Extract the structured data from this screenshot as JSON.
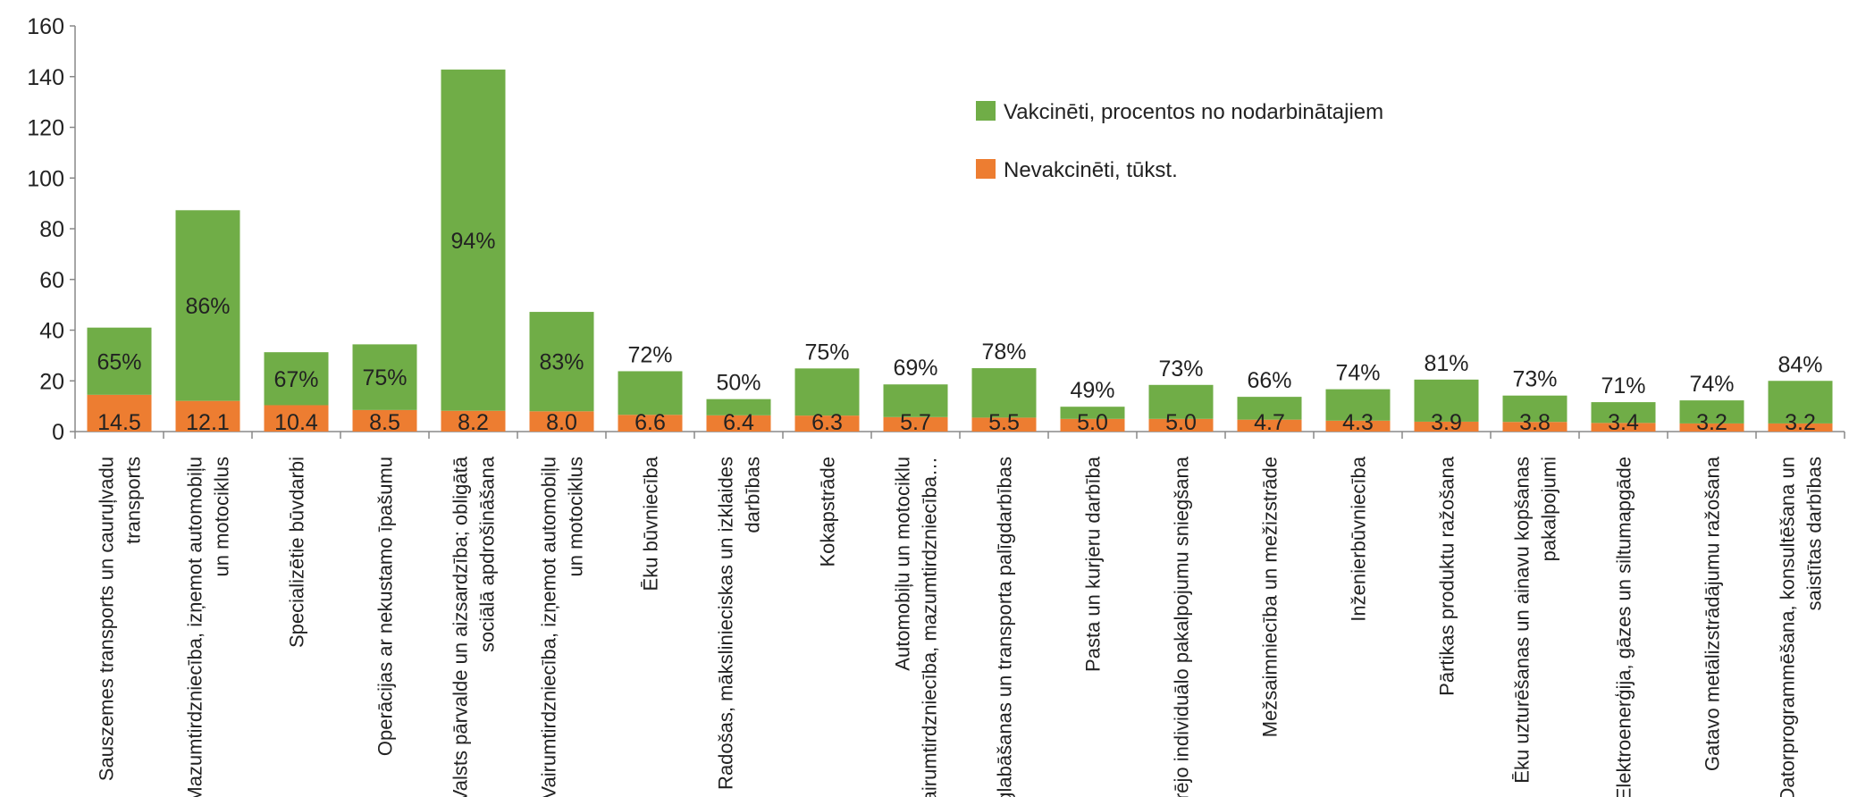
{
  "chart_data": {
    "type": "bar",
    "stacked": true,
    "ylim": [
      0,
      160
    ],
    "yticks": [
      0,
      20,
      40,
      60,
      80,
      100,
      120,
      140,
      160
    ],
    "grid": false,
    "legend_position": "top-right",
    "colors": {
      "vakcineti": "#70AD47",
      "nevakcineti": "#ED7D31"
    },
    "categories": [
      [
        "Sauszemes transports un cauruļvadu",
        "transports"
      ],
      [
        "Mazumtirdzniecība, izņemot automobiļu",
        "un motociklus"
      ],
      [
        "Specializētie būvdarbi"
      ],
      [
        "Operācijas ar nekustamo īpašumu"
      ],
      [
        "Valsts pārvalde un aizsardzība; obligātā",
        "sociālā apdrošināšana"
      ],
      [
        "Vairumtirdzniecība, izņemot automobiļu",
        "un motociklus"
      ],
      [
        "Ēku būvniecība"
      ],
      [
        "Radošas, mākslinieciskas un izklaides",
        "darbības"
      ],
      [
        "Kokapstrāde"
      ],
      [
        "Automobiļu un motociklu",
        "vairumtirdzniecība, mazumtirdzniecība…"
      ],
      [
        "Uzglabāšanas un transporta palīgdarbības"
      ],
      [
        "Pasta un kurjeru darbība"
      ],
      [
        "Pārējo individuālo pakalpojumu sniegšana"
      ],
      [
        "Mežsaimniecība un mežizstrāde"
      ],
      [
        "Inženierbūvniecība"
      ],
      [
        "Pārtikas produktu ražošana"
      ],
      [
        "Ēku uzturēšanas un ainavu kopšanas",
        "pakalpojumi"
      ],
      [
        "Elektroenerģija, gāzes un siltumapgāde"
      ],
      [
        "Gatavo metālizstrādājumu ražošana"
      ],
      [
        "Datorprogrammēšana, konsultēšana un",
        "saistītas darbības"
      ]
    ],
    "series": [
      {
        "name": "Nevakcinēti, tūkst.",
        "values": [
          14.5,
          12.1,
          10.4,
          8.5,
          8.2,
          8.0,
          6.6,
          6.4,
          6.3,
          5.7,
          5.5,
          5.0,
          5.0,
          4.7,
          4.3,
          3.9,
          3.8,
          3.4,
          3.2,
          3.2
        ],
        "labels": [
          "14.5",
          "12.1",
          "10.4",
          "8.5",
          "8.2",
          "8.0",
          "6.6",
          "6.4",
          "6.3",
          "5.7",
          "5.5",
          "5.0",
          "5.0",
          "4.7",
          "4.3",
          "3.9",
          "3.8",
          "3.4",
          "3.2",
          "3.2"
        ]
      },
      {
        "name": "Vakcinēti, procentos no nodarbinātajiem",
        "values": [
          26.5,
          75.2,
          20.9,
          25.9,
          134.6,
          39.2,
          17.2,
          6.4,
          18.6,
          12.9,
          19.5,
          4.8,
          13.4,
          9.0,
          12.4,
          16.6,
          10.4,
          8.2,
          9.1,
          16.8
        ],
        "labels": [
          "65%",
          "86%",
          "67%",
          "75%",
          "94%",
          "83%",
          "72%",
          "50%",
          "75%",
          "69%",
          "78%",
          "49%",
          "73%",
          "66%",
          "74%",
          "81%",
          "73%",
          "71%",
          "74%",
          "84%"
        ],
        "label_inside": [
          true,
          true,
          true,
          true,
          true,
          true,
          false,
          false,
          false,
          false,
          false,
          false,
          false,
          false,
          false,
          false,
          false,
          false,
          false,
          false
        ]
      }
    ],
    "legend": [
      {
        "name": "Vakcinēti, procentos no nodarbinātajiem",
        "color": "#70AD47"
      },
      {
        "name": "Nevakcinēti, tūkst.",
        "color": "#ED7D31"
      }
    ]
  }
}
